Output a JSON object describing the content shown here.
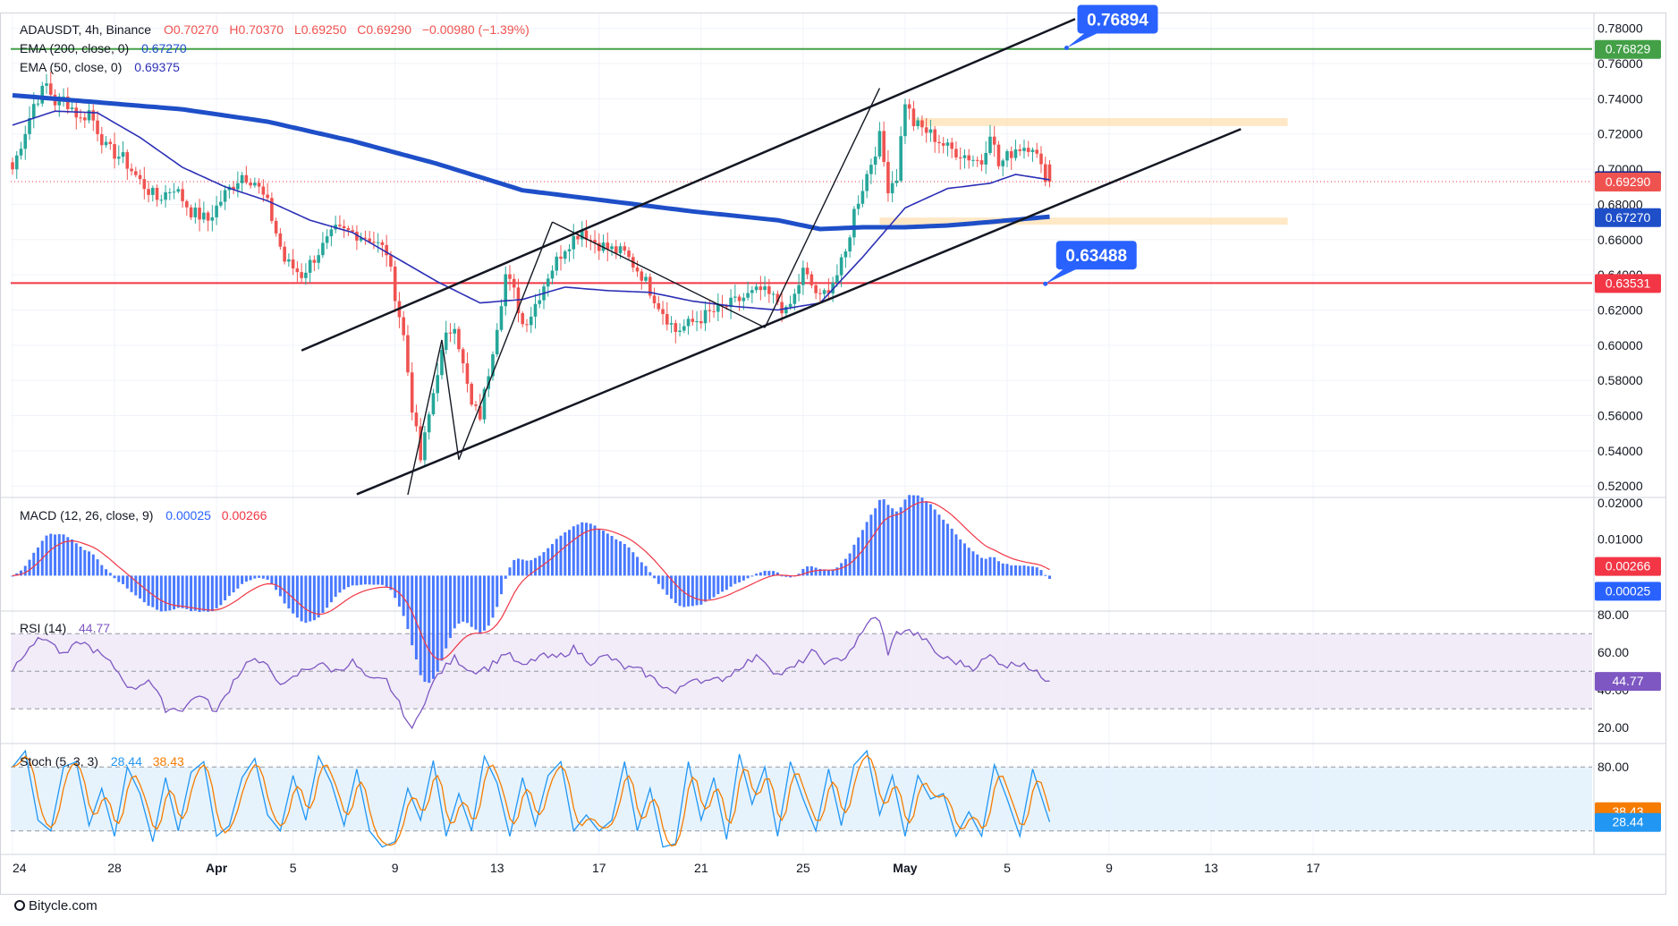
{
  "header": {
    "symbol_line": [
      "ADAUSDT, 4h, Binance",
      "O0.70270",
      "H0.70370",
      "L0.69250",
      "C0.69290",
      "−0.00980 (−1.39%)"
    ],
    "ema200_label": "EMA (200, close, 0)",
    "ema200_value": "0.67270",
    "ema50_label": "EMA (50, close, 0)",
    "ema50_value": "0.69375"
  },
  "macd": {
    "label": "MACD (12, 26, close, 9)",
    "v1": "0.00025",
    "v2": "0.00266"
  },
  "rsi": {
    "label": "RSI (14)",
    "value": "44.77"
  },
  "stoch": {
    "label": "Stoch (5, 3, 3)",
    "k": "28.44",
    "d": "38.43"
  },
  "brand": "Bitycle.com",
  "colors": {
    "up": "#26a69a",
    "down": "#ef5350",
    "ema200": "#1e4fc8",
    "ema50": "#2b2fb5",
    "macd": "#2962ff",
    "signal": "#f23645",
    "rsi": "#7e57c2",
    "stochK": "#2196f3",
    "stochD": "#f57c00",
    "green_line": "#43a047",
    "red_line": "#f23645",
    "zone": "#ffe0b2"
  },
  "chart_data": [
    {
      "type": "candlestick",
      "title": "ADAUSDT, 4h, Binance",
      "x_ticks": [
        "24",
        "28",
        "Apr",
        "5",
        "9",
        "13",
        "17",
        "21",
        "25",
        "May",
        "5",
        "9",
        "13",
        "17"
      ],
      "y_ticks": [
        "0.78000",
        "0.76000",
        "0.74000",
        "0.72000",
        "0.70000",
        "0.68000",
        "0.66000",
        "0.64000",
        "0.62000",
        "0.60000",
        "0.58000",
        "0.56000",
        "0.54000",
        "0.52000"
      ],
      "ylim": [
        0.514,
        0.789
      ],
      "ohlc_last": {
        "open": 0.7027,
        "high": 0.7037,
        "low": 0.6925,
        "close": 0.6929,
        "change": "−0.00980 (−1.39%)"
      },
      "anchors_close": [
        [
          0,
          0.7
        ],
        [
          3,
          0.722
        ],
        [
          5,
          0.737
        ],
        [
          8,
          0.748
        ],
        [
          10,
          0.738
        ],
        [
          12,
          0.74
        ],
        [
          14,
          0.735
        ],
        [
          16,
          0.728
        ],
        [
          18,
          0.733
        ],
        [
          22,
          0.712
        ],
        [
          26,
          0.706
        ],
        [
          30,
          0.693
        ],
        [
          34,
          0.683
        ],
        [
          38,
          0.69
        ],
        [
          42,
          0.676
        ],
        [
          46,
          0.671
        ],
        [
          50,
          0.686
        ],
        [
          54,
          0.697
        ],
        [
          57,
          0.693
        ],
        [
          60,
          0.68
        ],
        [
          64,
          0.648
        ],
        [
          68,
          0.64
        ],
        [
          72,
          0.653
        ],
        [
          76,
          0.665
        ],
        [
          80,
          0.664
        ],
        [
          84,
          0.661
        ],
        [
          88,
          0.653
        ],
        [
          92,
          0.605
        ],
        [
          94,
          0.565
        ],
        [
          96,
          0.535
        ],
        [
          98,
          0.56
        ],
        [
          100,
          0.586
        ],
        [
          102,
          0.604
        ],
        [
          104,
          0.613
        ],
        [
          106,
          0.588
        ],
        [
          108,
          0.565
        ],
        [
          110,
          0.56
        ],
        [
          112,
          0.585
        ],
        [
          114,
          0.612
        ],
        [
          116,
          0.64
        ],
        [
          118,
          0.63
        ],
        [
          120,
          0.612
        ],
        [
          122,
          0.618
        ],
        [
          126,
          0.64
        ],
        [
          130,
          0.656
        ],
        [
          134,
          0.666
        ],
        [
          136,
          0.66
        ],
        [
          140,
          0.655
        ],
        [
          144,
          0.652
        ],
        [
          148,
          0.64
        ],
        [
          152,
          0.623
        ],
        [
          156,
          0.608
        ],
        [
          160,
          0.613
        ],
        [
          164,
          0.618
        ],
        [
          168,
          0.622
        ],
        [
          172,
          0.627
        ],
        [
          176,
          0.631
        ],
        [
          180,
          0.625
        ],
        [
          182,
          0.618
        ],
        [
          184,
          0.628
        ],
        [
          186,
          0.642
        ],
        [
          190,
          0.626
        ],
        [
          194,
          0.64
        ],
        [
          196,
          0.652
        ],
        [
          198,
          0.676
        ],
        [
          200,
          0.69
        ],
        [
          202,
          0.704
        ],
        [
          204,
          0.718
        ],
        [
          206,
          0.69
        ],
        [
          208,
          0.696
        ],
        [
          210,
          0.739
        ],
        [
          212,
          0.726
        ],
        [
          216,
          0.72
        ],
        [
          220,
          0.712
        ],
        [
          224,
          0.708
        ],
        [
          228,
          0.704
        ],
        [
          230,
          0.722
        ],
        [
          232,
          0.702
        ],
        [
          236,
          0.712
        ],
        [
          240,
          0.714
        ],
        [
          242,
          0.7
        ],
        [
          244,
          0.693
        ]
      ],
      "ema200_anchors": [
        [
          0,
          0.742
        ],
        [
          20,
          0.738
        ],
        [
          40,
          0.734
        ],
        [
          60,
          0.727
        ],
        [
          80,
          0.716
        ],
        [
          100,
          0.703
        ],
        [
          120,
          0.688
        ],
        [
          140,
          0.682
        ],
        [
          160,
          0.676
        ],
        [
          180,
          0.671
        ],
        [
          190,
          0.666
        ],
        [
          200,
          0.667
        ],
        [
          210,
          0.667
        ],
        [
          220,
          0.668
        ],
        [
          230,
          0.67
        ],
        [
          244,
          0.673
        ]
      ],
      "ema50_anchors": [
        [
          0,
          0.725
        ],
        [
          10,
          0.733
        ],
        [
          20,
          0.732
        ],
        [
          30,
          0.718
        ],
        [
          40,
          0.701
        ],
        [
          50,
          0.69
        ],
        [
          60,
          0.682
        ],
        [
          70,
          0.671
        ],
        [
          80,
          0.664
        ],
        [
          90,
          0.65
        ],
        [
          100,
          0.636
        ],
        [
          110,
          0.624
        ],
        [
          120,
          0.626
        ],
        [
          130,
          0.633
        ],
        [
          140,
          0.631
        ],
        [
          150,
          0.63
        ],
        [
          160,
          0.625
        ],
        [
          170,
          0.622
        ],
        [
          180,
          0.62
        ],
        [
          190,
          0.624
        ],
        [
          200,
          0.65
        ],
        [
          210,
          0.678
        ],
        [
          220,
          0.689
        ],
        [
          230,
          0.692
        ],
        [
          236,
          0.697
        ],
        [
          244,
          0.694
        ]
      ],
      "levels": [
        {
          "price": 0.76829,
          "label": "0.76829",
          "color": "#43a047"
        },
        {
          "price": 0.63531,
          "label": "0.63531",
          "color": "#f23645"
        },
        {
          "price": 0.6929,
          "label": "0.69290",
          "color": "#f23645",
          "dotted": true
        }
      ],
      "price_tags": [
        {
          "price": 0.69375,
          "label": "0.69375",
          "color": "#1e3fa8"
        },
        {
          "price": 0.6727,
          "label": "0.67270",
          "color": "#1e4fc8"
        }
      ],
      "callouts": [
        {
          "label": "0.76894",
          "price": 0.76894,
          "x": 248
        },
        {
          "label": "0.63488",
          "price": 0.63488,
          "x": 243
        }
      ],
      "zones": [
        {
          "from": 0.7245,
          "to": 0.729,
          "x0": 212,
          "x1": 300
        },
        {
          "from": 0.6685,
          "to": 0.6725,
          "x0": 204,
          "x1": 300
        }
      ],
      "channel": {
        "upper": [
          [
            68,
            0.597
          ],
          [
            250,
            0.7853
          ]
        ],
        "lower": [
          [
            81,
            0.5153
          ],
          [
            289,
            0.7228
          ]
        ]
      },
      "zigzag": [
        [
          93,
          0.515
        ],
        [
          101,
          0.603
        ],
        [
          105,
          0.535
        ],
        [
          127,
          0.67
        ],
        [
          177,
          0.61
        ],
        [
          204,
          0.746
        ]
      ]
    },
    {
      "type": "bar",
      "title": "MACD (12, 26, close, 9)",
      "y_ticks": [
        "0.02000",
        "0.01000",
        "0.00266",
        "0.00025"
      ],
      "ylim": [
        -0.0095,
        0.0215
      ],
      "last": {
        "macd": 0.00025,
        "signal": 0.00266
      }
    },
    {
      "type": "line",
      "title": "RSI (14)",
      "y_ticks": [
        "80.00",
        "60.00",
        "40.00",
        "20.00"
      ],
      "ylim": [
        12,
        82
      ],
      "band": [
        30,
        70
      ],
      "midline": 50,
      "last": 44.77,
      "anchors": [
        [
          0,
          51
        ],
        [
          4,
          64
        ],
        [
          8,
          68
        ],
        [
          12,
          58
        ],
        [
          16,
          66
        ],
        [
          20,
          60
        ],
        [
          24,
          52
        ],
        [
          28,
          40
        ],
        [
          32,
          46
        ],
        [
          36,
          30
        ],
        [
          40,
          30
        ],
        [
          44,
          38
        ],
        [
          48,
          28
        ],
        [
          52,
          45
        ],
        [
          56,
          57
        ],
        [
          60,
          52
        ],
        [
          64,
          42
        ],
        [
          68,
          50
        ],
        [
          72,
          54
        ],
        [
          76,
          50
        ],
        [
          80,
          55
        ],
        [
          84,
          45
        ],
        [
          88,
          45
        ],
        [
          92,
          28
        ],
        [
          94,
          18
        ],
        [
          96,
          30
        ],
        [
          100,
          48
        ],
        [
          104,
          57
        ],
        [
          108,
          50
        ],
        [
          112,
          52
        ],
        [
          116,
          60
        ],
        [
          120,
          52
        ],
        [
          124,
          58
        ],
        [
          128,
          57
        ],
        [
          132,
          62
        ],
        [
          136,
          55
        ],
        [
          140,
          58
        ],
        [
          144,
          52
        ],
        [
          148,
          50
        ],
        [
          152,
          44
        ],
        [
          156,
          38
        ],
        [
          160,
          47
        ],
        [
          164,
          44
        ],
        [
          168,
          47
        ],
        [
          172,
          54
        ],
        [
          176,
          58
        ],
        [
          180,
          48
        ],
        [
          184,
          52
        ],
        [
          188,
          60
        ],
        [
          192,
          54
        ],
        [
          196,
          58
        ],
        [
          200,
          70
        ],
        [
          202,
          79
        ],
        [
          204,
          76
        ],
        [
          206,
          60
        ],
        [
          208,
          70
        ],
        [
          210,
          72
        ],
        [
          214,
          68
        ],
        [
          218,
          58
        ],
        [
          222,
          55
        ],
        [
          226,
          52
        ],
        [
          230,
          58
        ],
        [
          234,
          53
        ],
        [
          238,
          55
        ],
        [
          240,
          50
        ],
        [
          244,
          45
        ]
      ]
    },
    {
      "type": "line",
      "title": "Stoch (5, 3, 3)",
      "y_ticks": [
        "80.00",
        "38.43",
        "28.44"
      ],
      "ylim": [
        -2,
        102
      ],
      "band": [
        20,
        80
      ],
      "last": {
        "k": 28.44,
        "d": 38.43
      },
      "anchors_k": [
        [
          0,
          80
        ],
        [
          3,
          95
        ],
        [
          6,
          30
        ],
        [
          9,
          20
        ],
        [
          12,
          80
        ],
        [
          15,
          85
        ],
        [
          18,
          25
        ],
        [
          21,
          60
        ],
        [
          24,
          15
        ],
        [
          27,
          80
        ],
        [
          30,
          55
        ],
        [
          33,
          10
        ],
        [
          36,
          70
        ],
        [
          39,
          20
        ],
        [
          42,
          75
        ],
        [
          45,
          85
        ],
        [
          48,
          15
        ],
        [
          51,
          25
        ],
        [
          54,
          70
        ],
        [
          57,
          88
        ],
        [
          60,
          35
        ],
        [
          63,
          20
        ],
        [
          66,
          72
        ],
        [
          69,
          30
        ],
        [
          72,
          90
        ],
        [
          75,
          65
        ],
        [
          78,
          25
        ],
        [
          81,
          78
        ],
        [
          84,
          20
        ],
        [
          87,
          5
        ],
        [
          90,
          10
        ],
        [
          93,
          60
        ],
        [
          96,
          30
        ],
        [
          99,
          86
        ],
        [
          102,
          15
        ],
        [
          105,
          55
        ],
        [
          108,
          20
        ],
        [
          111,
          90
        ],
        [
          114,
          65
        ],
        [
          117,
          15
        ],
        [
          120,
          70
        ],
        [
          123,
          25
        ],
        [
          126,
          72
        ],
        [
          129,
          85
        ],
        [
          132,
          20
        ],
        [
          135,
          35
        ],
        [
          138,
          20
        ],
        [
          141,
          30
        ],
        [
          144,
          85
        ],
        [
          147,
          20
        ],
        [
          150,
          60
        ],
        [
          153,
          5
        ],
        [
          156,
          8
        ],
        [
          159,
          85
        ],
        [
          162,
          30
        ],
        [
          165,
          70
        ],
        [
          168,
          12
        ],
        [
          171,
          92
        ],
        [
          174,
          45
        ],
        [
          177,
          80
        ],
        [
          180,
          15
        ],
        [
          183,
          85
        ],
        [
          186,
          50
        ],
        [
          189,
          20
        ],
        [
          192,
          78
        ],
        [
          195,
          25
        ],
        [
          198,
          82
        ],
        [
          201,
          95
        ],
        [
          204,
          35
        ],
        [
          207,
          72
        ],
        [
          210,
          15
        ],
        [
          213,
          72
        ],
        [
          216,
          50
        ],
        [
          219,
          55
        ],
        [
          222,
          15
        ],
        [
          225,
          38
        ],
        [
          228,
          15
        ],
        [
          231,
          82
        ],
        [
          234,
          50
        ],
        [
          237,
          15
        ],
        [
          240,
          78
        ],
        [
          244,
          28
        ]
      ]
    }
  ]
}
